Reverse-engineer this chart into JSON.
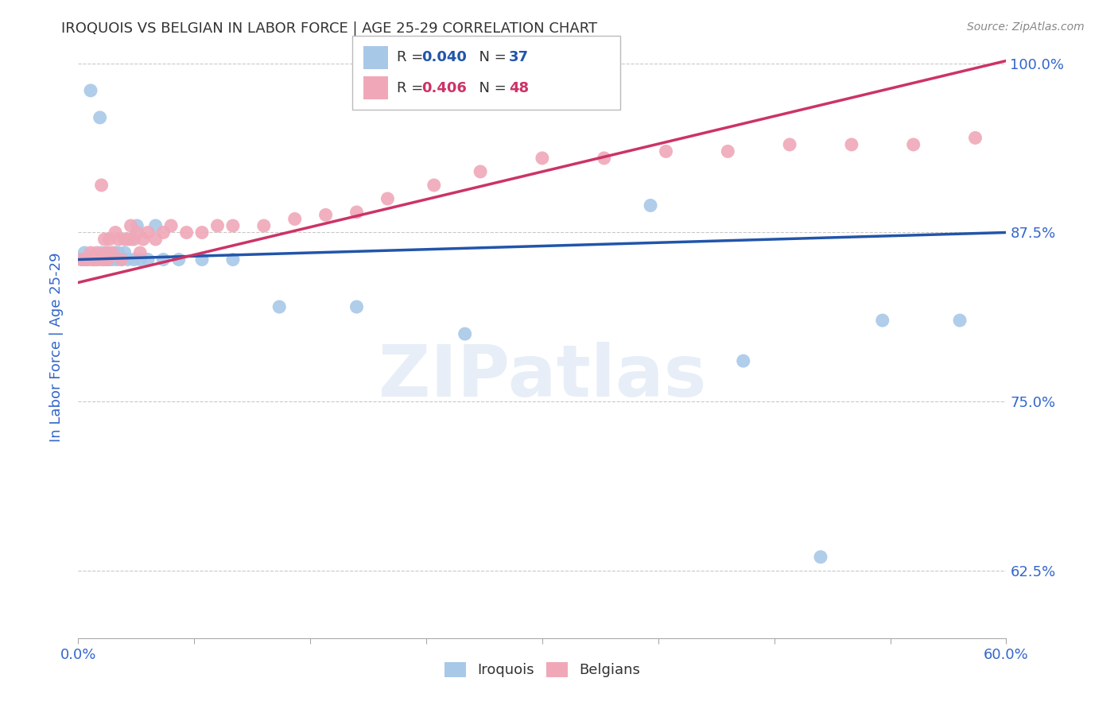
{
  "title": "IROQUOIS VS BELGIAN IN LABOR FORCE | AGE 25-29 CORRELATION CHART",
  "source": "Source: ZipAtlas.com",
  "ylabel": "In Labor Force | Age 25-29",
  "xlim": [
    0.0,
    0.6
  ],
  "ylim": [
    0.575,
    1.005
  ],
  "yticks": [
    0.625,
    0.75,
    0.875,
    1.0
  ],
  "ytick_labels": [
    "62.5%",
    "75.0%",
    "87.5%",
    "100.0%"
  ],
  "xtick_left_label": "0.0%",
  "xtick_right_label": "60.0%",
  "iroquois_color": "#a8c8e8",
  "belgians_color": "#f0a8b8",
  "iroquois_line_color": "#2255aa",
  "belgians_line_color": "#cc3366",
  "R_iroquois": 0.04,
  "N_iroquois": 37,
  "R_belgians": 0.406,
  "N_belgians": 48,
  "watermark": "ZIPatlas",
  "background_color": "#ffffff",
  "grid_color": "#bbbbbb",
  "axis_label_color": "#3366cc",
  "title_color": "#333333",
  "iroquois_x": [
    0.002,
    0.004,
    0.006,
    0.008,
    0.01,
    0.012,
    0.014,
    0.015,
    0.016,
    0.018,
    0.019,
    0.02,
    0.022,
    0.024,
    0.025,
    0.026,
    0.028,
    0.03,
    0.032,
    0.034,
    0.036,
    0.038,
    0.04,
    0.045,
    0.05,
    0.055,
    0.065,
    0.08,
    0.1,
    0.13,
    0.18,
    0.25,
    0.37,
    0.43,
    0.48,
    0.52,
    0.57
  ],
  "iroquois_y": [
    0.855,
    0.86,
    0.855,
    0.98,
    0.855,
    0.855,
    0.96,
    0.86,
    0.855,
    0.855,
    0.86,
    0.855,
    0.855,
    0.86,
    0.855,
    0.86,
    0.855,
    0.86,
    0.855,
    0.87,
    0.855,
    0.88,
    0.855,
    0.855,
    0.88,
    0.855,
    0.855,
    0.855,
    0.855,
    0.82,
    0.82,
    0.8,
    0.895,
    0.78,
    0.635,
    0.81,
    0.81
  ],
  "belgians_x": [
    0.002,
    0.004,
    0.006,
    0.008,
    0.009,
    0.011,
    0.012,
    0.013,
    0.015,
    0.016,
    0.017,
    0.018,
    0.019,
    0.02,
    0.022,
    0.024,
    0.026,
    0.028,
    0.03,
    0.032,
    0.034,
    0.036,
    0.038,
    0.04,
    0.042,
    0.045,
    0.05,
    0.055,
    0.06,
    0.07,
    0.08,
    0.09,
    0.1,
    0.12,
    0.14,
    0.16,
    0.18,
    0.2,
    0.23,
    0.26,
    0.3,
    0.34,
    0.38,
    0.42,
    0.46,
    0.5,
    0.54,
    0.58
  ],
  "belgians_y": [
    0.855,
    0.855,
    0.855,
    0.86,
    0.855,
    0.855,
    0.86,
    0.855,
    0.91,
    0.855,
    0.87,
    0.86,
    0.855,
    0.87,
    0.86,
    0.875,
    0.87,
    0.855,
    0.87,
    0.87,
    0.88,
    0.87,
    0.875,
    0.86,
    0.87,
    0.875,
    0.87,
    0.875,
    0.88,
    0.875,
    0.875,
    0.88,
    0.88,
    0.88,
    0.885,
    0.888,
    0.89,
    0.9,
    0.91,
    0.92,
    0.93,
    0.93,
    0.935,
    0.935,
    0.94,
    0.94,
    0.94,
    0.945
  ],
  "irq_line_x0": 0.0,
  "irq_line_y0": 0.855,
  "irq_line_x1": 0.6,
  "irq_line_y1": 0.875,
  "bel_line_x0": 0.0,
  "bel_line_y0": 0.838,
  "bel_line_x1": 0.6,
  "bel_line_y1": 1.002
}
